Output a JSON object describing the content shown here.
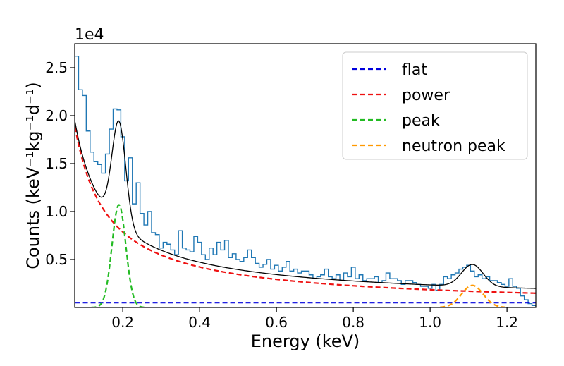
{
  "chart_data": {
    "type": "line",
    "title": "",
    "xlabel": "Energy (keV)",
    "ylabel": "Counts (keV⁻¹kg⁻¹d⁻¹)",
    "y_offset_label": "1e4",
    "xlim": [
      0.075,
      1.275
    ],
    "ylim": [
      0,
      2.75
    ],
    "y_scale_factor": 10000,
    "grid": false,
    "legend_position": "top-right",
    "x_ticks": [
      {
        "value": 0.2,
        "label": "0.2"
      },
      {
        "value": 0.4,
        "label": "0.4"
      },
      {
        "value": 0.6,
        "label": "0.6"
      },
      {
        "value": 0.8,
        "label": "0.8"
      },
      {
        "value": 1.0,
        "label": "1.0"
      },
      {
        "value": 1.2,
        "label": "1.2"
      }
    ],
    "y_ticks": [
      {
        "value": 0.5,
        "label": "0.5"
      },
      {
        "value": 1.0,
        "label": "1.0"
      },
      {
        "value": 1.5,
        "label": "1.5"
      },
      {
        "value": 2.0,
        "label": "2.0"
      },
      {
        "value": 2.5,
        "label": "2.5"
      }
    ],
    "model": {
      "flat": 0.05,
      "power_amplitude": 0.185,
      "power_index": 0.9,
      "power_offset": 0.0,
      "peak": {
        "center": 0.19,
        "sigma": 0.018,
        "amplitude": 1.07
      },
      "neutron_peak": {
        "center": 1.11,
        "sigma": 0.028,
        "amplitude": 0.23
      }
    },
    "series": [
      {
        "name": "flat",
        "color": "#0000dd",
        "style": "dashed",
        "component": "flat"
      },
      {
        "name": "power",
        "color": "#ee1111",
        "style": "dashed",
        "component": "power"
      },
      {
        "name": "peak",
        "color": "#22bb22",
        "style": "dashed",
        "component": "peak"
      },
      {
        "name": "neutron peak",
        "color": "#ff9900",
        "style": "dashed",
        "component": "neutron_peak"
      }
    ],
    "total_fit": {
      "color": "#000000",
      "style": "solid"
    },
    "histogram": {
      "color": "#1f77b4",
      "bin_width": 0.01,
      "bin_start": 0.075,
      "counts": [
        2.62,
        2.27,
        2.21,
        1.84,
        1.62,
        1.52,
        1.49,
        1.4,
        1.6,
        1.86,
        2.07,
        2.06,
        1.78,
        1.32,
        1.56,
        1.08,
        1.3,
        0.98,
        0.86,
        1.0,
        0.78,
        0.76,
        0.62,
        0.68,
        0.66,
        0.6,
        0.55,
        0.8,
        0.62,
        0.6,
        0.58,
        0.74,
        0.68,
        0.55,
        0.5,
        0.62,
        0.55,
        0.68,
        0.6,
        0.7,
        0.52,
        0.56,
        0.5,
        0.48,
        0.52,
        0.6,
        0.52,
        0.46,
        0.42,
        0.45,
        0.5,
        0.4,
        0.44,
        0.38,
        0.42,
        0.48,
        0.38,
        0.4,
        0.36,
        0.38,
        0.38,
        0.34,
        0.3,
        0.32,
        0.34,
        0.4,
        0.32,
        0.3,
        0.34,
        0.28,
        0.36,
        0.32,
        0.42,
        0.3,
        0.34,
        0.28,
        0.3,
        0.3,
        0.32,
        0.26,
        0.28,
        0.36,
        0.3,
        0.3,
        0.28,
        0.24,
        0.28,
        0.28,
        0.26,
        0.24,
        0.22,
        0.22,
        0.2,
        0.24,
        0.18,
        0.24,
        0.32,
        0.3,
        0.34,
        0.36,
        0.4,
        0.42,
        0.44,
        0.38,
        0.32,
        0.34,
        0.3,
        0.32,
        0.28,
        0.28,
        0.26,
        0.24,
        0.22,
        0.3,
        0.22,
        0.2,
        0.12,
        0.08,
        0.04,
        0.02
      ]
    }
  }
}
